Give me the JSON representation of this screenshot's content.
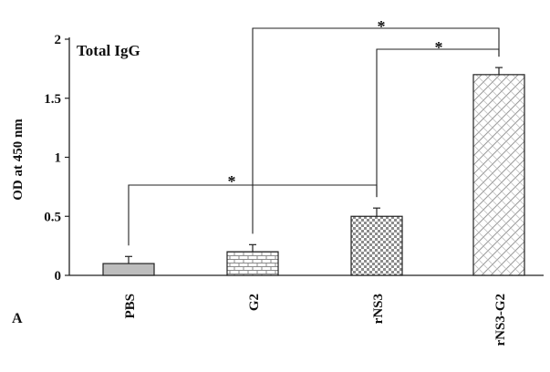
{
  "chart_data": {
    "type": "bar",
    "inset_title": "Total IgG",
    "ylabel": "OD at 450 nm",
    "panel_label": "A",
    "ylim": [
      0,
      2
    ],
    "yticks": [
      "0",
      "0.5",
      "1",
      "1.5",
      "2"
    ],
    "ytick_values": [
      0,
      0.5,
      1,
      1.5,
      2
    ],
    "categories": [
      "PBS",
      "G2",
      "rNS3",
      "rNS3-G2"
    ],
    "values": [
      0.1,
      0.2,
      0.5,
      1.7
    ],
    "errors": [
      0.06,
      0.06,
      0.07,
      0.06
    ],
    "fill_patterns": [
      "solid-gray",
      "brick",
      "checker",
      "diagonal-lattice"
    ],
    "significance": [
      {
        "from": "PBS",
        "to": "rNS3",
        "label": "*"
      },
      {
        "from": "G2",
        "to": "rNS3-G2",
        "label": "*"
      },
      {
        "from": "rNS3",
        "to": "rNS3-G2",
        "label": "*"
      }
    ]
  }
}
